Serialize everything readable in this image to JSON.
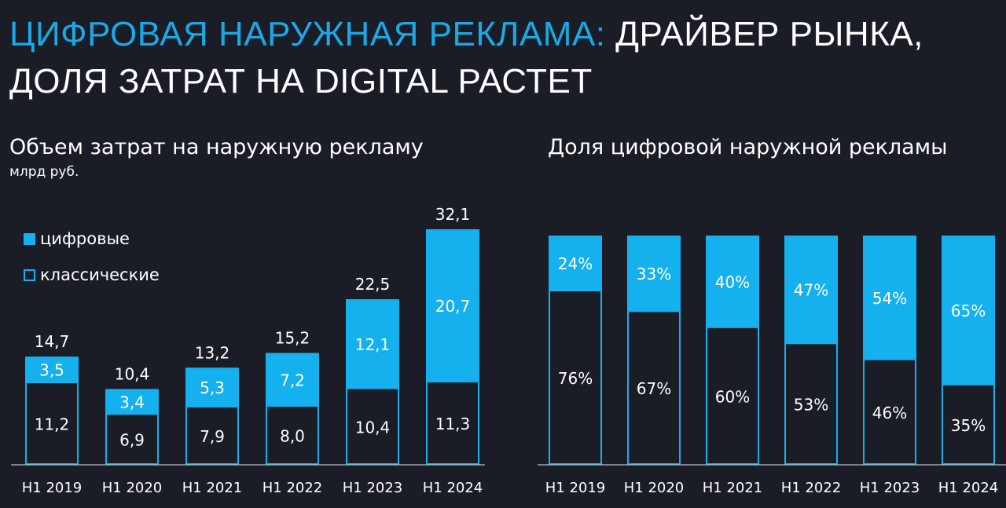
{
  "title": {
    "accent": "ЦИФРОВАЯ НАРУЖНАЯ РЕКЛАМА:",
    "rest1": " ДРАЙВЕР РЫНКА,",
    "line2": "ДОЛЯ ЗАТРАТ НА DIGITAL РАСТЕТ"
  },
  "colors": {
    "accent": "#1aa9e6",
    "bar_fill": "#14b1ee",
    "background": "#1a1c26"
  },
  "legend": {
    "digital": {
      "label": "цифровые",
      "icon": "filled-square-icon"
    },
    "classic": {
      "label": "классические",
      "icon": "hollow-square-icon"
    }
  },
  "chart_data": [
    {
      "type": "bar",
      "stacked": true,
      "title": "Объем затрат на наружную рекламу",
      "unit": "млрд руб.",
      "categories": [
        "H1 2019",
        "H1 2020",
        "H1 2021",
        "H1 2022",
        "H1 2023",
        "H1 2024"
      ],
      "series": [
        {
          "name": "классические",
          "values": [
            11.2,
            6.9,
            7.9,
            8.0,
            10.4,
            11.3
          ],
          "labels": [
            "11,2",
            "6,9",
            "7,9",
            "8,0",
            "10,4",
            "11,3"
          ]
        },
        {
          "name": "цифровые",
          "values": [
            3.5,
            3.4,
            5.3,
            7.2,
            12.1,
            20.7
          ],
          "labels": [
            "3,5",
            "3,4",
            "5,3",
            "7,2",
            "12,1",
            "20,7"
          ]
        }
      ],
      "totals": [
        14.7,
        10.4,
        13.2,
        15.2,
        22.5,
        32.1
      ],
      "total_labels": [
        "14,7",
        "10,4",
        "13,2",
        "15,2",
        "22,5",
        "32,1"
      ],
      "legend_position": "top-left"
    },
    {
      "type": "bar",
      "stacked": true,
      "percent": true,
      "title": "Доля цифровой наружной рекламы",
      "categories": [
        "H1 2019",
        "H1 2020",
        "H1 2021",
        "H1 2022",
        "H1 2023",
        "H1 2024"
      ],
      "series": [
        {
          "name": "классические",
          "values": [
            76,
            67,
            60,
            53,
            46,
            35
          ],
          "labels": [
            "76%",
            "67%",
            "60%",
            "53%",
            "46%",
            "35%"
          ]
        },
        {
          "name": "цифровые",
          "values": [
            24,
            33,
            40,
            47,
            54,
            65
          ],
          "labels": [
            "24%",
            "33%",
            "40%",
            "47%",
            "54%",
            "65%"
          ]
        }
      ]
    }
  ]
}
